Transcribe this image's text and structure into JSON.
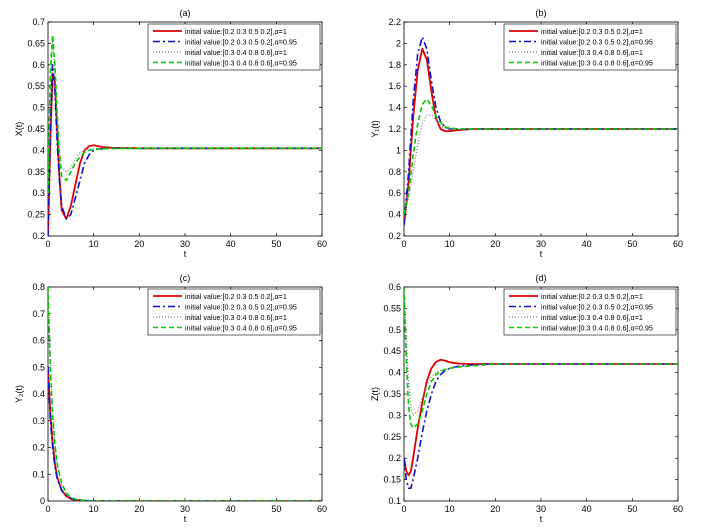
{
  "figure": {
    "series_style": [
      {
        "color": "#e00000",
        "dash": "",
        "width": 1.8
      },
      {
        "color": "#1010d0",
        "dash": "7,3,2,3",
        "width": 1.6
      },
      {
        "color": "#7a7a7a",
        "dash": "1,2",
        "width": 1.2
      },
      {
        "color": "#00cc00",
        "dash": "5,3",
        "width": 1.6
      }
    ]
  },
  "chart_data": [
    {
      "type": "line",
      "title": "(a)",
      "xlabel": "t",
      "ylabel": "X(t)",
      "xlim": [
        0,
        60
      ],
      "ylim": [
        0.2,
        0.7
      ],
      "xticks": [
        0,
        10,
        20,
        30,
        40,
        50,
        60
      ],
      "yticks": [
        0.2,
        0.25,
        0.3,
        0.35,
        0.4,
        0.45,
        0.5,
        0.55,
        0.6,
        0.65,
        0.7
      ],
      "grid": false,
      "legend": "top-right",
      "series": [
        {
          "name": "initial value:[0.2 0.3 0.5 0.2],α=1",
          "x": [
            0,
            0.5,
            1,
            1.5,
            2,
            2.5,
            3,
            4,
            5,
            6,
            7,
            8,
            9,
            10,
            11,
            12,
            14,
            20,
            30,
            40,
            50,
            60
          ],
          "y": [
            0.2,
            0.42,
            0.58,
            0.56,
            0.45,
            0.34,
            0.26,
            0.24,
            0.27,
            0.32,
            0.37,
            0.4,
            0.41,
            0.412,
            0.41,
            0.408,
            0.406,
            0.405,
            0.405,
            0.405,
            0.405,
            0.405
          ]
        },
        {
          "name": "initial value:[0.2 0.3 0.5 0.2],α=0.95",
          "x": [
            0,
            0.5,
            1,
            1.5,
            2,
            2.5,
            3,
            4,
            5,
            6,
            7,
            8,
            9,
            10,
            11,
            12,
            14,
            20,
            30,
            40,
            50,
            60
          ],
          "y": [
            0.2,
            0.45,
            0.6,
            0.54,
            0.42,
            0.33,
            0.27,
            0.24,
            0.25,
            0.29,
            0.33,
            0.37,
            0.39,
            0.4,
            0.403,
            0.404,
            0.405,
            0.405,
            0.405,
            0.405,
            0.405,
            0.405
          ]
        },
        {
          "name": "initial value:[0.3 0.4 0.8 0.6],α=1",
          "x": [
            0,
            0.5,
            1,
            1.5,
            2,
            2.5,
            3,
            4,
            5,
            6,
            7,
            8,
            9,
            10,
            12,
            20,
            30,
            40,
            50,
            60
          ],
          "y": [
            0.3,
            0.55,
            0.66,
            0.58,
            0.48,
            0.4,
            0.36,
            0.35,
            0.36,
            0.38,
            0.395,
            0.4,
            0.403,
            0.404,
            0.405,
            0.405,
            0.405,
            0.405,
            0.405,
            0.405
          ]
        },
        {
          "name": "initial value:[0.3 0.4 0.8 0.6],α=0.95",
          "x": [
            0,
            0.5,
            1,
            1.5,
            2,
            2.5,
            3,
            4,
            5,
            6,
            7,
            8,
            9,
            10,
            12,
            20,
            30,
            40,
            50,
            60
          ],
          "y": [
            0.3,
            0.58,
            0.67,
            0.6,
            0.49,
            0.39,
            0.34,
            0.33,
            0.35,
            0.37,
            0.385,
            0.395,
            0.4,
            0.402,
            0.404,
            0.405,
            0.405,
            0.405,
            0.405,
            0.405
          ]
        }
      ]
    },
    {
      "type": "line",
      "title": "(b)",
      "xlabel": "t",
      "ylabel": "Y₁(t)",
      "xlim": [
        0,
        60
      ],
      "ylim": [
        0.2,
        2.2
      ],
      "xticks": [
        0,
        10,
        20,
        30,
        40,
        50,
        60
      ],
      "yticks": [
        0.2,
        0.4,
        0.6,
        0.8,
        1,
        1.2,
        1.4,
        1.6,
        1.8,
        2,
        2.2
      ],
      "grid": false,
      "legend": "top-right",
      "series": [
        {
          "name": "initial value:[0.2 0.3 0.5 0.2],α=1",
          "x": [
            0,
            1,
            2,
            3,
            4,
            5,
            6,
            7,
            8,
            9,
            10,
            12,
            15,
            20,
            30,
            40,
            50,
            60
          ],
          "y": [
            0.3,
            0.7,
            1.3,
            1.75,
            1.95,
            1.85,
            1.55,
            1.3,
            1.2,
            1.18,
            1.18,
            1.19,
            1.2,
            1.2,
            1.2,
            1.2,
            1.2,
            1.2
          ]
        },
        {
          "name": "initial value:[0.2 0.3 0.5 0.2],α=0.95",
          "x": [
            0,
            1,
            2,
            3,
            4,
            5,
            6,
            7,
            8,
            9,
            10,
            12,
            15,
            20,
            30,
            40,
            50,
            60
          ],
          "y": [
            0.3,
            0.8,
            1.45,
            1.9,
            2.06,
            1.95,
            1.65,
            1.4,
            1.27,
            1.22,
            1.2,
            1.2,
            1.2,
            1.2,
            1.2,
            1.2,
            1.2,
            1.2
          ]
        },
        {
          "name": "initial value:[0.3 0.4 0.8 0.6],α=1",
          "x": [
            0,
            1,
            2,
            3,
            4,
            5,
            6,
            7,
            8,
            9,
            10,
            12,
            15,
            20,
            30,
            40,
            50,
            60
          ],
          "y": [
            0.4,
            0.55,
            0.8,
            1.05,
            1.25,
            1.33,
            1.33,
            1.28,
            1.23,
            1.21,
            1.2,
            1.2,
            1.2,
            1.2,
            1.2,
            1.2,
            1.2,
            1.2
          ]
        },
        {
          "name": "initial value:[0.3 0.4 0.8 0.6],α=0.95",
          "x": [
            0,
            1,
            2,
            3,
            4,
            5,
            6,
            7,
            8,
            9,
            10,
            12,
            15,
            20,
            30,
            40,
            50,
            60
          ],
          "y": [
            0.4,
            0.6,
            0.95,
            1.25,
            1.43,
            1.48,
            1.42,
            1.32,
            1.26,
            1.22,
            1.21,
            1.2,
            1.2,
            1.2,
            1.2,
            1.2,
            1.2,
            1.2
          ]
        }
      ]
    },
    {
      "type": "line",
      "title": "(c)",
      "xlabel": "t",
      "ylabel": "Y₂(t)",
      "xlim": [
        0,
        60
      ],
      "ylim": [
        0,
        0.8
      ],
      "xticks": [
        0,
        10,
        20,
        30,
        40,
        50,
        60
      ],
      "yticks": [
        0,
        0.1,
        0.2,
        0.3,
        0.4,
        0.5,
        0.6,
        0.7,
        0.8
      ],
      "grid": false,
      "legend": "top-right",
      "series": [
        {
          "name": "initial value:[0.2 0.3 0.5 0.2],α=1",
          "x": [
            0,
            0.5,
            1,
            1.5,
            2,
            3,
            4,
            5,
            6,
            8,
            10,
            20,
            30,
            40,
            50,
            60
          ],
          "y": [
            0.5,
            0.33,
            0.22,
            0.14,
            0.09,
            0.04,
            0.018,
            0.008,
            0.004,
            0.001,
            0,
            0,
            0,
            0,
            0,
            0
          ]
        },
        {
          "name": "initial value:[0.2 0.3 0.5 0.2],α=0.95",
          "x": [
            0,
            0.5,
            1,
            1.5,
            2,
            3,
            4,
            5,
            6,
            8,
            10,
            20,
            30,
            40,
            50,
            60
          ],
          "y": [
            0.5,
            0.31,
            0.2,
            0.13,
            0.085,
            0.04,
            0.02,
            0.01,
            0.005,
            0.002,
            0,
            0,
            0,
            0,
            0,
            0
          ]
        },
        {
          "name": "initial value:[0.3 0.4 0.8 0.6],α=1",
          "x": [
            0,
            0.5,
            1,
            1.5,
            2,
            3,
            4,
            5,
            6,
            8,
            10,
            20,
            30,
            40,
            50,
            60
          ],
          "y": [
            0.8,
            0.52,
            0.34,
            0.22,
            0.14,
            0.06,
            0.026,
            0.012,
            0.005,
            0.001,
            0,
            0,
            0,
            0,
            0,
            0
          ]
        },
        {
          "name": "initial value:[0.3 0.4 0.8 0.6],α=0.95",
          "x": [
            0,
            0.5,
            1,
            1.5,
            2,
            3,
            4,
            5,
            6,
            8,
            10,
            20,
            30,
            40,
            50,
            60
          ],
          "y": [
            0.8,
            0.5,
            0.32,
            0.21,
            0.14,
            0.065,
            0.03,
            0.014,
            0.007,
            0.002,
            0,
            0,
            0,
            0,
            0,
            0
          ]
        }
      ]
    },
    {
      "type": "line",
      "title": "(d)",
      "xlabel": "t",
      "ylabel": "Z(t)",
      "xlim": [
        0,
        60
      ],
      "ylim": [
        0.1,
        0.6
      ],
      "xticks": [
        0,
        10,
        20,
        30,
        40,
        50,
        60
      ],
      "yticks": [
        0.1,
        0.15,
        0.2,
        0.25,
        0.3,
        0.35,
        0.4,
        0.45,
        0.5,
        0.55,
        0.6
      ],
      "grid": false,
      "legend": "top-right",
      "series": [
        {
          "name": "initial value:[0.2 0.3 0.5 0.2],α=1",
          "x": [
            0,
            0.5,
            1,
            1.5,
            2,
            3,
            4,
            5,
            6,
            7,
            8,
            9,
            10,
            12,
            15,
            20,
            30,
            40,
            50,
            60
          ],
          "y": [
            0.2,
            0.17,
            0.16,
            0.17,
            0.2,
            0.27,
            0.33,
            0.38,
            0.41,
            0.425,
            0.43,
            0.428,
            0.424,
            0.421,
            0.42,
            0.42,
            0.42,
            0.42,
            0.42,
            0.42
          ]
        },
        {
          "name": "initial value:[0.2 0.3 0.5 0.2],α=0.95",
          "x": [
            0,
            0.5,
            1,
            1.5,
            2,
            3,
            4,
            5,
            6,
            7,
            8,
            9,
            10,
            12,
            15,
            20,
            30,
            40,
            50,
            60
          ],
          "y": [
            0.2,
            0.15,
            0.13,
            0.13,
            0.15,
            0.2,
            0.26,
            0.31,
            0.35,
            0.38,
            0.395,
            0.405,
            0.41,
            0.415,
            0.418,
            0.42,
            0.42,
            0.42,
            0.42,
            0.42
          ]
        },
        {
          "name": "initial value:[0.3 0.4 0.8 0.6],α=1",
          "x": [
            0,
            0.5,
            1,
            1.5,
            2,
            3,
            4,
            5,
            6,
            7,
            8,
            9,
            10,
            12,
            15,
            20,
            30,
            40,
            50,
            60
          ],
          "y": [
            0.6,
            0.48,
            0.38,
            0.32,
            0.3,
            0.31,
            0.34,
            0.37,
            0.39,
            0.4,
            0.405,
            0.408,
            0.41,
            0.414,
            0.417,
            0.42,
            0.42,
            0.42,
            0.42,
            0.42
          ]
        },
        {
          "name": "initial value:[0.3 0.4 0.8 0.6],α=0.95",
          "x": [
            0,
            0.5,
            1,
            1.5,
            2,
            3,
            4,
            5,
            6,
            7,
            8,
            9,
            10,
            12,
            15,
            20,
            30,
            40,
            50,
            60
          ],
          "y": [
            0.6,
            0.43,
            0.32,
            0.28,
            0.27,
            0.28,
            0.31,
            0.35,
            0.38,
            0.395,
            0.403,
            0.407,
            0.41,
            0.413,
            0.416,
            0.42,
            0.42,
            0.42,
            0.42,
            0.42
          ]
        }
      ]
    }
  ]
}
